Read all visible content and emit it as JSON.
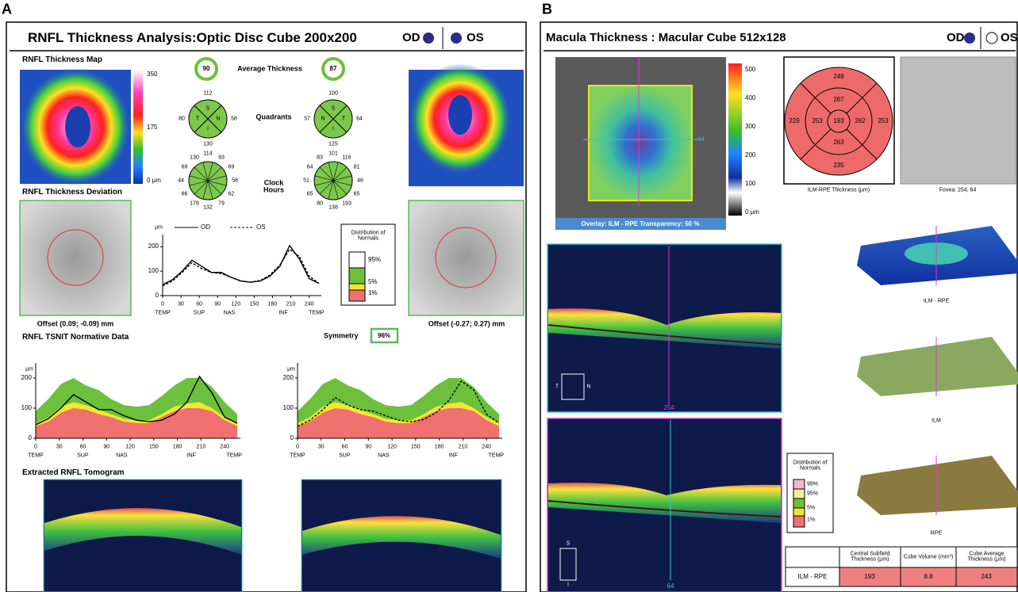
{
  "panel_a": {
    "letter": "A",
    "title": "RNFL Thickness Analysis:Optic Disc Cube 200x200",
    "eye_od": "OD",
    "eye_os": "OS",
    "map_title": "RNFL Thickness Map",
    "map_scale": [
      "350",
      "175",
      "0 µm"
    ],
    "average": {
      "label": "Average Thickness",
      "od": 90,
      "os": 87
    },
    "quadrants": {
      "label": "Quadrants",
      "od_letters": [
        "S",
        "N",
        "I",
        "T"
      ],
      "os_letters": [
        "S",
        "T",
        "I",
        "N"
      ],
      "od": [
        112,
        58,
        130,
        80
      ],
      "os": [
        100,
        64,
        125,
        57
      ]
    },
    "clock": {
      "label": "Clock Hours",
      "od": [
        114,
        93,
        69,
        58,
        62,
        79,
        132,
        178,
        66,
        44,
        69,
        130
      ],
      "os": [
        101,
        116,
        81,
        46,
        65,
        193,
        138,
        80,
        65,
        51,
        64,
        83
      ]
    },
    "deviation_title": "RNFL Thickness Deviation",
    "offset_od": "Offset (0.09; -0.09) mm",
    "offset_os": "Offset (-0.27; 0.27) mm",
    "tsnit": {
      "unit": "µm",
      "xlim": [
        0,
        260
      ],
      "ylim": [
        0,
        250
      ],
      "xticks": [
        0,
        30,
        60,
        90,
        120,
        150,
        180,
        210,
        240
      ],
      "yticks": [
        0,
        100,
        200
      ],
      "regions": [
        "TEMP",
        "SUP",
        "NAS",
        "INF",
        "TEMP"
      ],
      "x": [
        0,
        16,
        32,
        48,
        64,
        80,
        96,
        112,
        128,
        144,
        160,
        176,
        192,
        208,
        224,
        240,
        256
      ],
      "series": [
        {
          "name": "OD",
          "color": "#000000",
          "dashed": false,
          "values": [
            45,
            65,
            100,
            145,
            120,
            95,
            95,
            75,
            60,
            55,
            60,
            80,
            120,
            205,
            150,
            70,
            50
          ]
        },
        {
          "name": "OS",
          "color": "#000000",
          "dashed": true,
          "values": [
            40,
            60,
            95,
            135,
            110,
            95,
            90,
            75,
            60,
            55,
            62,
            85,
            125,
            190,
            160,
            80,
            50
          ]
        }
      ]
    },
    "distribution": {
      "title": "Distribution of Normals",
      "levels": [
        "95%",
        "5%",
        "1%"
      ]
    },
    "symmetry": {
      "label": "Symmetry",
      "value": "96%"
    },
    "normative": {
      "title": "RNFL TSNIT Normative Data",
      "bands": [
        {
          "color": "#6cc03c",
          "values": [
            90,
            130,
            180,
            200,
            175,
            160,
            130,
            110,
            105,
            110,
            140,
            175,
            200,
            200,
            170,
            120,
            80
          ]
        },
        {
          "color": "#f2e830",
          "values": [
            50,
            70,
            105,
            120,
            110,
            95,
            80,
            65,
            60,
            60,
            80,
            105,
            115,
            120,
            100,
            70,
            50
          ]
        },
        {
          "color": "#f07070",
          "values": [
            40,
            55,
            85,
            100,
            95,
            80,
            70,
            55,
            50,
            50,
            70,
            90,
            100,
            100,
            90,
            60,
            40
          ]
        }
      ]
    },
    "tomogram_title": "Extracted RNFL Tomogram"
  },
  "panel_b": {
    "letter": "B",
    "title": "Macula Thickness : Macular Cube 512x128",
    "eye_od": "OD",
    "eye_os": "OS",
    "scale": [
      "500",
      "400",
      "300",
      "200",
      "100",
      "0 µm"
    ],
    "fundus_marker": "64",
    "overlay": "Overlay: ILM - RPE  Transparency: 50 %",
    "etdrs": {
      "center": 193,
      "inner": [
        267,
        262,
        263,
        253
      ],
      "outer": [
        248,
        253,
        235,
        229
      ],
      "caption": "ILM-RPE Thickness (µm)"
    },
    "fovea": "Fovea: 254, 64",
    "maps": [
      "ILM - RPE",
      "ILM",
      "RPE"
    ],
    "scan1_label": "254",
    "scan2_label": "64",
    "orient1": [
      "T",
      "N"
    ],
    "orient2": [
      "S",
      "I"
    ],
    "distribution": {
      "title": "Distribution of Normals",
      "levels": [
        "99%",
        "95%",
        "5%",
        "1%"
      ]
    },
    "table": {
      "headers": [
        "Central Subfield Thickness (µm)",
        "Cube Volume (mm³)",
        "Cube Average Thickness (µm)"
      ],
      "rows": [
        [
          "ILM - RPE",
          "193",
          "8.8",
          "243"
        ]
      ]
    }
  }
}
